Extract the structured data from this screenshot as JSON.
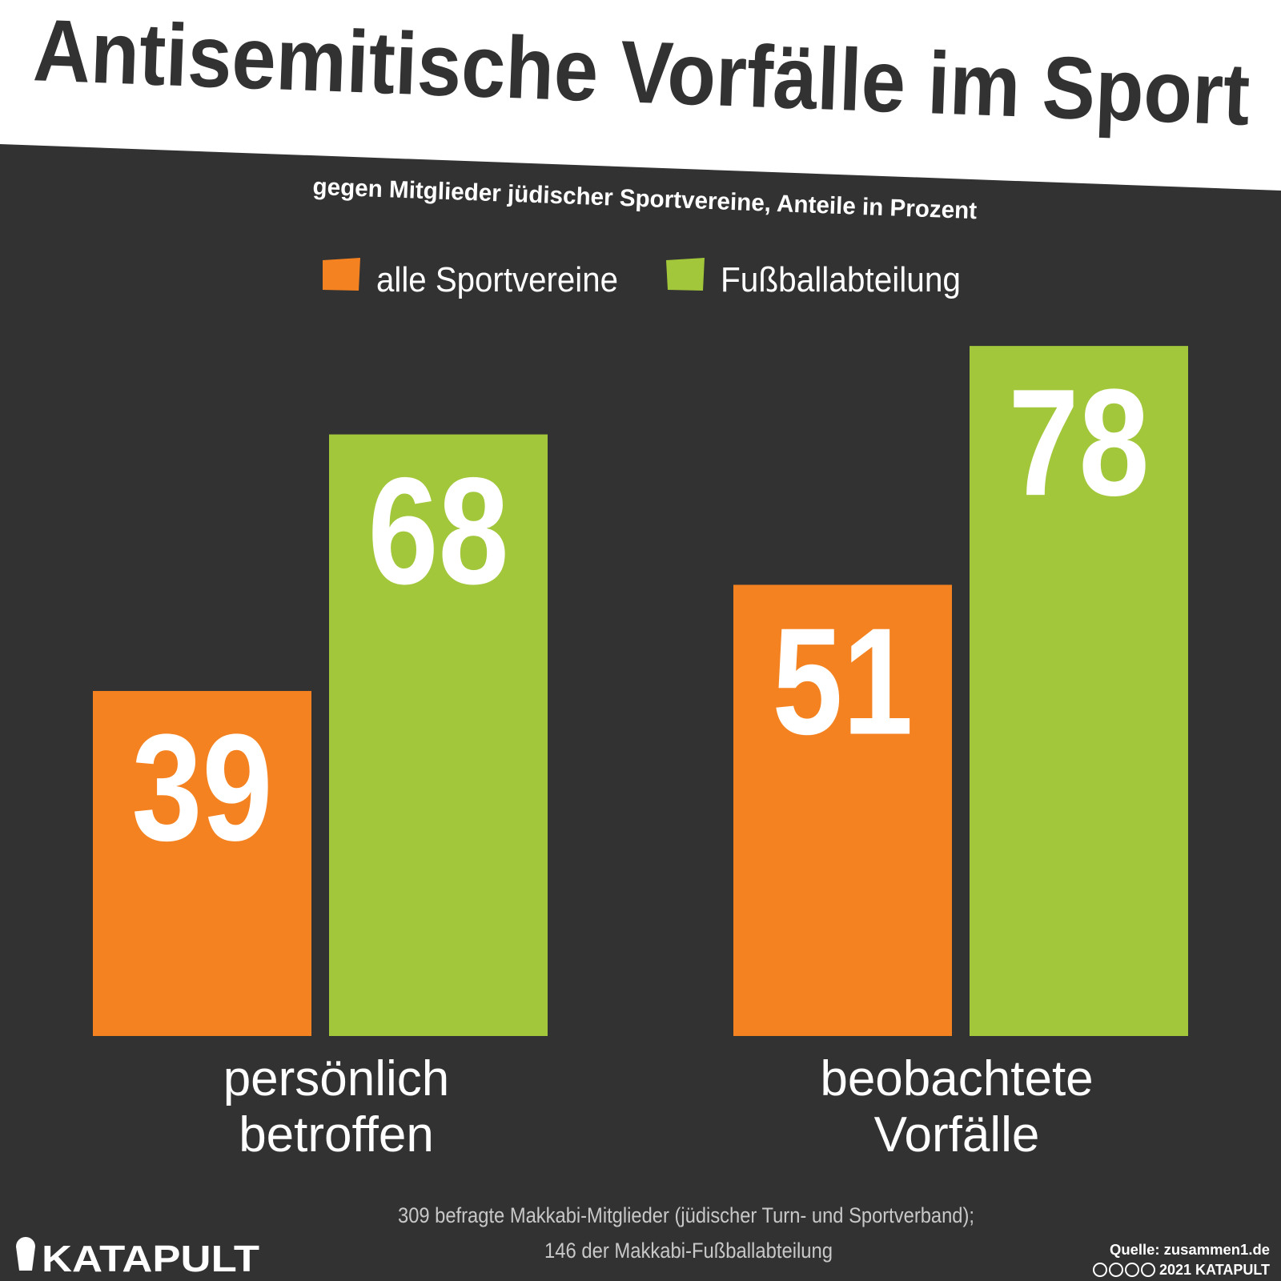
{
  "header": {
    "title": "Antisemitische Vorfälle im Sport",
    "subtitle": "gegen Mitglieder jüdischer Sportvereine, Anteile in Prozent"
  },
  "legend": {
    "placement": "top-center",
    "items": [
      {
        "label": "alle Sportvereine",
        "color": "#f58220"
      },
      {
        "label": "Fußballabteilung",
        "color": "#a2c73b"
      }
    ]
  },
  "chart_data": {
    "type": "bar",
    "title": "Antisemitische Vorfälle im Sport",
    "subtitle": "gegen Mitglieder jüdischer Sportvereine, Anteile in Prozent",
    "categories": [
      [
        "persönlich",
        "betroffen"
      ],
      [
        "beobachtete",
        "Vorfälle"
      ]
    ],
    "series": [
      {
        "name": "alle Sportvereine",
        "color": "#f58220",
        "values": [
          39,
          51
        ]
      },
      {
        "name": "Fußballabteilung",
        "color": "#a2c73b",
        "values": [
          68,
          78
        ]
      }
    ],
    "ylim": [
      0,
      100
    ],
    "grid": false,
    "data_labels": true
  },
  "footer": {
    "note_line1": "309 befragte Makkabi-Mitglieder (jüdischer Turn- und Sportverband);",
    "note_line2": "146 der Makkabi-Fußballabteilung",
    "logo": "KATAPULT",
    "source": "Quelle: zusammen1.de",
    "copyright": "2021 KATAPULT"
  },
  "colors": {
    "background": "#323232",
    "header_band": "#ffffff",
    "orange": "#f58220",
    "green": "#a2c73b"
  }
}
